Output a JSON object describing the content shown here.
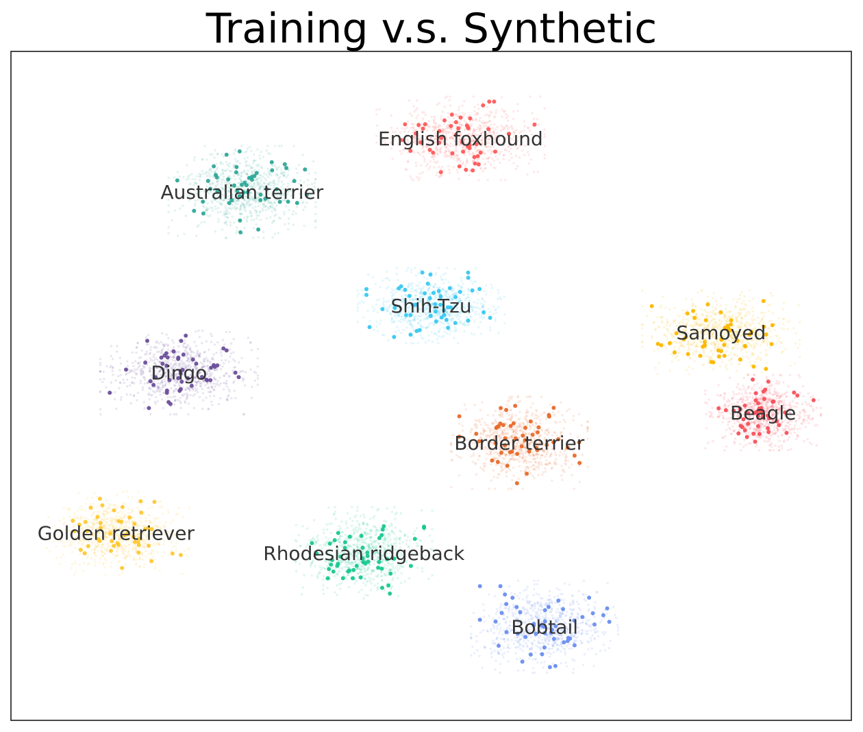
{
  "chart_data": {
    "type": "scatter",
    "title": "Training v.s. Synthetic",
    "xlabel": "",
    "ylabel": "",
    "grid": false,
    "legend": "none",
    "xlim": [
      0,
      100
    ],
    "ylim": [
      0,
      100
    ],
    "clusters": [
      {
        "label": "English foxhound",
        "color": "#ff5a5a",
        "center": [
          53.5,
          87.0
        ],
        "spread": [
          8.0,
          5.0
        ],
        "seed": 11
      },
      {
        "label": "Australian terrier",
        "color": "#2fa898",
        "center": [
          27.5,
          79.0
        ],
        "spread": [
          7.0,
          5.5
        ],
        "seed": 23
      },
      {
        "label": "Shih-Tzu",
        "color": "#38c8f0",
        "center": [
          50.0,
          62.0
        ],
        "spread": [
          7.0,
          4.5
        ],
        "seed": 37
      },
      {
        "label": "Samoyed",
        "color": "#fbb800",
        "center": [
          84.5,
          58.0
        ],
        "spread": [
          7.5,
          5.0
        ],
        "seed": 41
      },
      {
        "label": "Dingo",
        "color": "#6b4f9a",
        "center": [
          20.0,
          52.0
        ],
        "spread": [
          7.5,
          5.0
        ],
        "seed": 53
      },
      {
        "label": "Beagle",
        "color": "#f8505a",
        "center": [
          89.5,
          46.0
        ],
        "spread": [
          5.5,
          4.5
        ],
        "seed": 67
      },
      {
        "label": "Border terrier",
        "color": "#e86a2a",
        "center": [
          60.5,
          41.5
        ],
        "spread": [
          6.5,
          5.5
        ],
        "seed": 71
      },
      {
        "label": "Golden retriever",
        "color": "#ffc830",
        "center": [
          12.5,
          28.0
        ],
        "spread": [
          7.0,
          5.0
        ],
        "seed": 83
      },
      {
        "label": "Rhodesian ridgeback",
        "color": "#18c890",
        "center": [
          42.0,
          25.0
        ],
        "spread": [
          6.5,
          5.5
        ],
        "seed": 97
      },
      {
        "label": "Bobtail",
        "color": "#6a8ef0",
        "center": [
          63.5,
          14.0
        ],
        "spread": [
          7.0,
          5.5
        ],
        "seed": 101
      }
    ]
  }
}
